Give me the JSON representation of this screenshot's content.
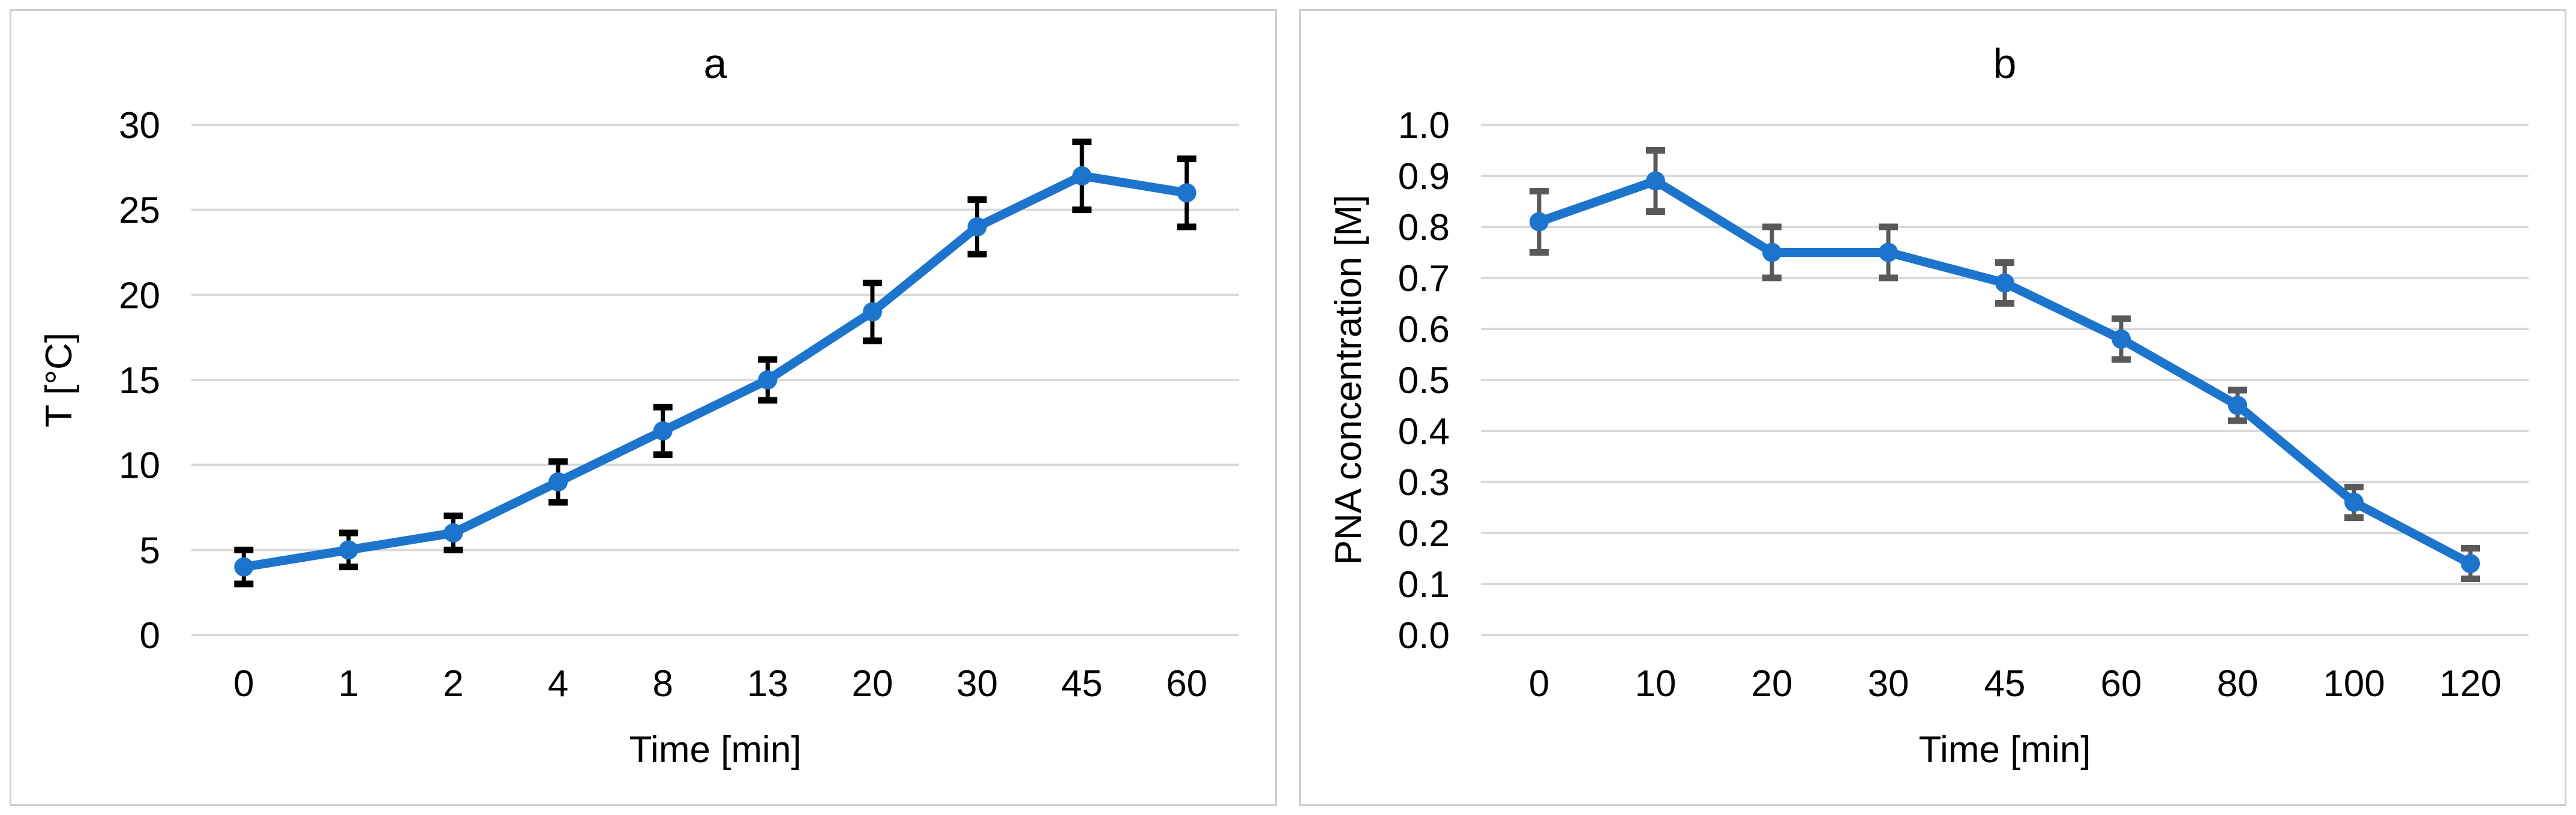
{
  "figure": {
    "background": "#FFFFFF",
    "panel_border_color": "#CFCFCF"
  },
  "chart_data": [
    {
      "panel": "a",
      "type": "line",
      "title": "a",
      "xlabel": "Time [min]",
      "ylabel": "T [°C]",
      "categories": [
        "0",
        "1",
        "2",
        "4",
        "8",
        "13",
        "20",
        "30",
        "45",
        "60"
      ],
      "series": [
        {
          "name": "temperature",
          "values": [
            4,
            5,
            6,
            9,
            12,
            15,
            19,
            24,
            27,
            26
          ],
          "errors": [
            1,
            1,
            1,
            1.2,
            1.4,
            1.2,
            1.7,
            1.6,
            2,
            2
          ]
        }
      ],
      "ylim": [
        0,
        30
      ],
      "yticks": [
        0,
        5,
        10,
        15,
        20,
        25,
        30
      ],
      "ytick_labels": [
        "0",
        "5",
        "10",
        "15",
        "20",
        "25",
        "30"
      ],
      "grid": "horizontal",
      "legend": "none",
      "marker": "circle",
      "line_color": "#1D74CC",
      "error_bar_color": "#000000",
      "gridline_color": "#D9D9D9",
      "text_color": "#000000"
    },
    {
      "panel": "b",
      "type": "line",
      "title": "b",
      "xlabel": "Time [min]",
      "ylabel": "PNA concentration [M]",
      "categories": [
        "0",
        "10",
        "20",
        "30",
        "45",
        "60",
        "80",
        "100",
        "120"
      ],
      "series": [
        {
          "name": "pna-concentration",
          "values": [
            0.81,
            0.89,
            0.75,
            0.75,
            0.69,
            0.58,
            0.45,
            0.26,
            0.14
          ],
          "errors": [
            0.06,
            0.06,
            0.05,
            0.05,
            0.04,
            0.04,
            0.03,
            0.03,
            0.03
          ]
        }
      ],
      "ylim": [
        0,
        1.0
      ],
      "yticks": [
        0,
        0.1,
        0.2,
        0.3,
        0.4,
        0.5,
        0.6,
        0.7,
        0.8,
        0.9,
        1.0
      ],
      "ytick_labels": [
        "0.0",
        "0.1",
        "0.2",
        "0.3",
        "0.4",
        "0.5",
        "0.6",
        "0.7",
        "0.8",
        "0.9",
        "1.0"
      ],
      "grid": "horizontal",
      "legend": "none",
      "marker": "circle",
      "line_color": "#1D74CC",
      "error_bar_color": "#595959",
      "gridline_color": "#D9D9D9",
      "text_color": "#000000"
    }
  ]
}
